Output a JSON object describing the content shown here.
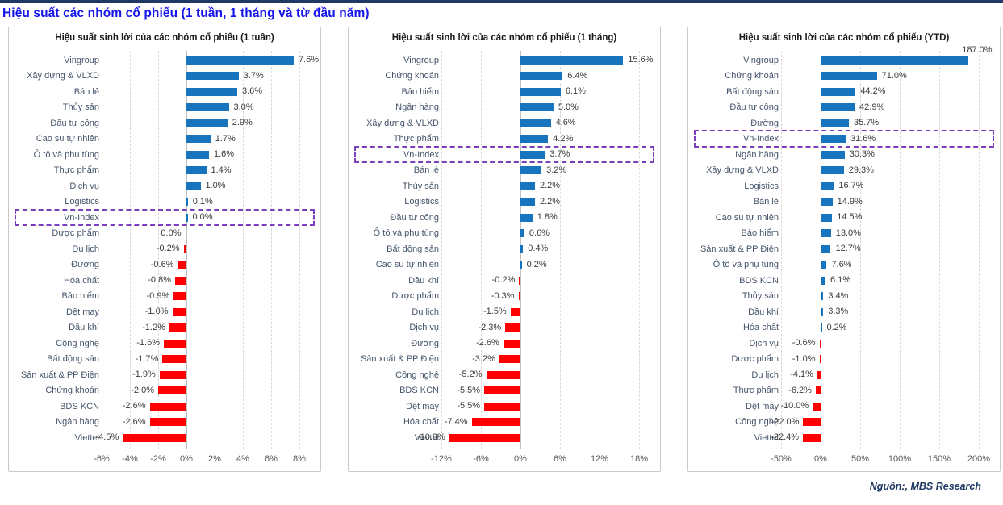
{
  "page": {
    "title": "Hiệu suất các nhóm cổ phiếu (1 tuần, 1 tháng và từ đầu năm)",
    "source_note": "Nguồn:, MBS Research"
  },
  "colors": {
    "positive_bar": "#1874BC",
    "negative_bar": "#FE0000",
    "highlight_box": "#7B3FBE",
    "page_title_blue": "#1414EB",
    "navy": "#1F3864",
    "category_text": "#44546A",
    "value_text": "#3B3B3B",
    "axis_text": "#595959",
    "gridline": "#D9D9D9",
    "panel_border": "#C9C9C9"
  },
  "chart_data": [
    {
      "type": "bar",
      "orientation": "horizontal",
      "title": "Hiệu suất sinh lời của các nhóm cổ phiếu (1 tuần)",
      "xlabel": "",
      "ylabel": "",
      "xlim": [
        -6,
        8
      ],
      "tick_values": [
        -6,
        -4,
        -2,
        0,
        2,
        4,
        6,
        8
      ],
      "tick_labels": [
        "-6%",
        "-4%",
        "-2%",
        "0%",
        "2%",
        "4%",
        "6%",
        "8%"
      ],
      "grid": true,
      "highlight_label": "Vn-Index",
      "rows": [
        {
          "label": "Vingroup",
          "value": 7.6,
          "display": "7.6%"
        },
        {
          "label": "Xây dựng & VLXD",
          "value": 3.7,
          "display": "3.7%"
        },
        {
          "label": "Bán lẻ",
          "value": 3.6,
          "display": "3.6%"
        },
        {
          "label": "Thủy sản",
          "value": 3.0,
          "display": "3.0%"
        },
        {
          "label": "Đầu tư công",
          "value": 2.9,
          "display": "2.9%"
        },
        {
          "label": "Cao su tự nhiên",
          "value": 1.7,
          "display": "1.7%"
        },
        {
          "label": "Ô tô và phụ tùng",
          "value": 1.6,
          "display": "1.6%"
        },
        {
          "label": "Thực phẩm",
          "value": 1.4,
          "display": "1.4%"
        },
        {
          "label": "Dịch vụ",
          "value": 1.0,
          "display": "1.0%"
        },
        {
          "label": "Logistics",
          "value": 0.1,
          "display": "0.1%"
        },
        {
          "label": "Vn-Index",
          "value": 0.0,
          "display": "0.0%"
        },
        {
          "label": "Dược phẩm",
          "value": -0.05,
          "display": "0.0%"
        },
        {
          "label": "Du lịch",
          "value": -0.2,
          "display": "-0.2%"
        },
        {
          "label": "Đường",
          "value": -0.6,
          "display": "-0.6%"
        },
        {
          "label": "Hóa chất",
          "value": -0.8,
          "display": "-0.8%"
        },
        {
          "label": "Bảo hiểm",
          "value": -0.9,
          "display": "-0.9%"
        },
        {
          "label": "Dệt may",
          "value": -1.0,
          "display": "-1.0%"
        },
        {
          "label": "Dầu khí",
          "value": -1.2,
          "display": "-1.2%"
        },
        {
          "label": "Công nghệ",
          "value": -1.6,
          "display": "-1.6%"
        },
        {
          "label": "Bất động sản",
          "value": -1.7,
          "display": "-1.7%"
        },
        {
          "label": "Sản xuất & PP Điện",
          "value": -1.9,
          "display": "-1.9%"
        },
        {
          "label": "Chứng khoán",
          "value": -2.0,
          "display": "-2.0%"
        },
        {
          "label": "BDS KCN",
          "value": -2.6,
          "display": "-2.6%"
        },
        {
          "label": "Ngân hàng",
          "value": -2.6,
          "display": "-2.6%"
        },
        {
          "label": "Viettel",
          "value": -4.5,
          "display": "-4.5%"
        }
      ]
    },
    {
      "type": "bar",
      "orientation": "horizontal",
      "title": "Hiệu suất sinh lời của các nhóm cổ phiếu (1 tháng)",
      "xlabel": "",
      "ylabel": "",
      "xlim": [
        -12,
        18
      ],
      "tick_values": [
        -12,
        -6,
        0,
        6,
        12,
        18
      ],
      "tick_labels": [
        "-12%",
        "-6%",
        "0%",
        "6%",
        "12%",
        "18%"
      ],
      "grid": true,
      "highlight_label": "Vn-Index",
      "rows": [
        {
          "label": "Vingroup",
          "value": 15.6,
          "display": "15.6%"
        },
        {
          "label": "Chứng khoán",
          "value": 6.4,
          "display": "6.4%"
        },
        {
          "label": "Bảo hiểm",
          "value": 6.1,
          "display": "6.1%"
        },
        {
          "label": "Ngân hàng",
          "value": 5.0,
          "display": "5.0%"
        },
        {
          "label": "Xây dựng & VLXD",
          "value": 4.6,
          "display": "4.6%"
        },
        {
          "label": "Thực phẩm",
          "value": 4.2,
          "display": "4.2%"
        },
        {
          "label": "Vn-Index",
          "value": 3.7,
          "display": "3.7%"
        },
        {
          "label": "Bán lẻ",
          "value": 3.2,
          "display": "3.2%"
        },
        {
          "label": "Thủy sản",
          "value": 2.2,
          "display": "2.2%"
        },
        {
          "label": "Logistics",
          "value": 2.2,
          "display": "2.2%"
        },
        {
          "label": "Đầu tư công",
          "value": 1.8,
          "display": "1.8%"
        },
        {
          "label": "Ô tô và phụ tùng",
          "value": 0.6,
          "display": "0.6%"
        },
        {
          "label": "Bất động sản",
          "value": 0.4,
          "display": "0.4%"
        },
        {
          "label": "Cao su tự nhiên",
          "value": 0.2,
          "display": "0.2%"
        },
        {
          "label": "Dầu khí",
          "value": -0.2,
          "display": "-0.2%"
        },
        {
          "label": "Dược phẩm",
          "value": -0.3,
          "display": "-0.3%"
        },
        {
          "label": "Du lịch",
          "value": -1.5,
          "display": "-1.5%"
        },
        {
          "label": "Dịch vụ",
          "value": -2.3,
          "display": "-2.3%"
        },
        {
          "label": "Đường",
          "value": -2.6,
          "display": "-2.6%"
        },
        {
          "label": "Sản xuất & PP Điện",
          "value": -3.2,
          "display": "-3.2%"
        },
        {
          "label": "Công nghệ",
          "value": -5.2,
          "display": "-5.2%"
        },
        {
          "label": "BDS KCN",
          "value": -5.5,
          "display": "-5.5%"
        },
        {
          "label": "Dệt may",
          "value": -5.5,
          "display": "-5.5%"
        },
        {
          "label": "Hóa chất",
          "value": -7.4,
          "display": "-7.4%"
        },
        {
          "label": "Viettel",
          "value": -10.8,
          "display": "-10.8%"
        }
      ]
    },
    {
      "type": "bar",
      "orientation": "horizontal",
      "title": "Hiệu suất sinh lời của các nhóm cổ phiếu (YTD)",
      "xlabel": "",
      "ylabel": "",
      "xlim": [
        -50,
        200
      ],
      "tick_values": [
        -50,
        0,
        50,
        100,
        150,
        200
      ],
      "tick_labels": [
        "-50%",
        "0%",
        "50%",
        "100%",
        "150%",
        "200%"
      ],
      "grid": true,
      "highlight_label": "Vn-Index",
      "rows": [
        {
          "label": "Vingroup",
          "value": 187.0,
          "display": "187.0%",
          "label_above": true
        },
        {
          "label": "Chứng khoán",
          "value": 71.0,
          "display": "71.0%"
        },
        {
          "label": "Bất động sản",
          "value": 44.2,
          "display": "44.2%"
        },
        {
          "label": "Đầu tư công",
          "value": 42.9,
          "display": "42.9%"
        },
        {
          "label": "Đường",
          "value": 35.7,
          "display": "35.7%"
        },
        {
          "label": "Vn-Index",
          "value": 31.6,
          "display": "31.6%"
        },
        {
          "label": "Ngân hàng",
          "value": 30.3,
          "display": "30.3%"
        },
        {
          "label": "Xây dựng & VLXD",
          "value": 29.3,
          "display": "29.3%"
        },
        {
          "label": "Logistics",
          "value": 16.7,
          "display": "16.7%"
        },
        {
          "label": "Bán lẻ",
          "value": 14.9,
          "display": "14.9%"
        },
        {
          "label": "Cao su tự nhiên",
          "value": 14.5,
          "display": "14.5%"
        },
        {
          "label": "Bảo hiểm",
          "value": 13.0,
          "display": "13.0%"
        },
        {
          "label": "Sản xuất & PP Điện",
          "value": 12.7,
          "display": "12.7%"
        },
        {
          "label": "Ô tô và phụ tùng",
          "value": 7.6,
          "display": "7.6%"
        },
        {
          "label": "BDS KCN",
          "value": 6.1,
          "display": "6.1%"
        },
        {
          "label": "Thủy sản",
          "value": 3.4,
          "display": "3.4%"
        },
        {
          "label": "Dầu khí",
          "value": 3.3,
          "display": "3.3%"
        },
        {
          "label": "Hóa chất",
          "value": 0.2,
          "display": "0.2%"
        },
        {
          "label": "Dịch vụ",
          "value": -0.6,
          "display": "-0.6%"
        },
        {
          "label": "Dược phẩm",
          "value": -1.0,
          "display": "-1.0%"
        },
        {
          "label": "Du lịch",
          "value": -4.1,
          "display": "-4.1%"
        },
        {
          "label": "Thực phẩm",
          "value": -6.2,
          "display": "-6.2%"
        },
        {
          "label": "Dệt may",
          "value": -10.0,
          "display": "-10.0%"
        },
        {
          "label": "Công nghệ",
          "value": -22.0,
          "display": "-22.0%"
        },
        {
          "label": "Viettel",
          "value": -22.4,
          "display": "-22.4%"
        }
      ]
    }
  ]
}
